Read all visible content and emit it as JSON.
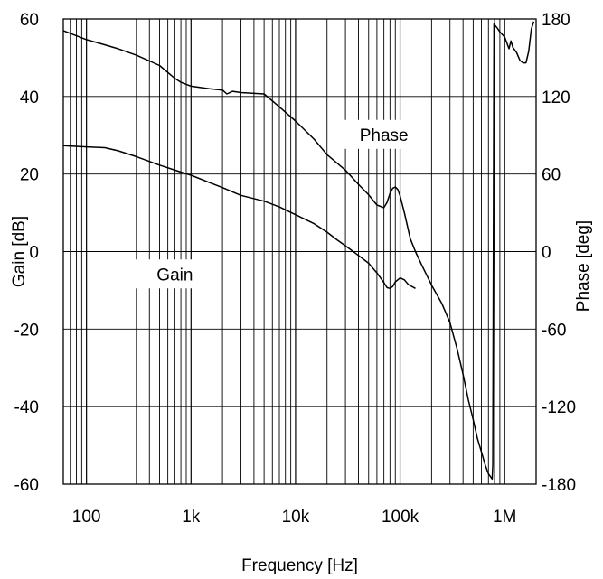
{
  "chart_data": {
    "type": "line",
    "xlabel": "Frequency [Hz]",
    "ylabel_left": "Gain [dB]",
    "ylabel_right": "Phase [deg]",
    "x_scale": "log",
    "xlim": [
      60,
      2000000
    ],
    "ylim_left": [
      -60,
      60
    ],
    "ylim_right": [
      -180,
      180
    ],
    "grid": true,
    "x_ticks": [
      {
        "value": 100,
        "label": "100"
      },
      {
        "value": 1000,
        "label": "1k"
      },
      {
        "value": 10000,
        "label": "10k"
      },
      {
        "value": 100000,
        "label": "100k"
      },
      {
        "value": 1000000,
        "label": "1M"
      }
    ],
    "y_left_ticks": [
      {
        "value": 60,
        "label": "60"
      },
      {
        "value": 40,
        "label": "40"
      },
      {
        "value": 20,
        "label": "20"
      },
      {
        "value": 0,
        "label": "0"
      },
      {
        "value": -20,
        "label": "-20"
      },
      {
        "value": -40,
        "label": "-40"
      },
      {
        "value": -60,
        "label": "-60"
      }
    ],
    "y_right_ticks": [
      {
        "value": 180,
        "label": "180"
      },
      {
        "value": 120,
        "label": "120"
      },
      {
        "value": 60,
        "label": "60"
      },
      {
        "value": 0,
        "label": "0"
      },
      {
        "value": -60,
        "label": "-60"
      },
      {
        "value": -120,
        "label": "-120"
      },
      {
        "value": -180,
        "label": "-180"
      }
    ],
    "series": [
      {
        "name": "Gain",
        "axis": "left",
        "label_at": {
          "x": 700,
          "y": -6
        },
        "points": [
          [
            60,
            27.3
          ],
          [
            100,
            27.0
          ],
          [
            150,
            26.8
          ],
          [
            200,
            26.0
          ],
          [
            300,
            24.5
          ],
          [
            500,
            22.3
          ],
          [
            800,
            20.5
          ],
          [
            1000,
            19.7
          ],
          [
            1500,
            17.8
          ],
          [
            2000,
            16.5
          ],
          [
            3000,
            14.5
          ],
          [
            5000,
            13.0
          ],
          [
            7000,
            11.5
          ],
          [
            10000,
            9.5
          ],
          [
            15000,
            7.2
          ],
          [
            20000,
            5.0
          ],
          [
            25000,
            3.0
          ],
          [
            30000,
            1.5
          ],
          [
            40000,
            -1.0
          ],
          [
            50000,
            -3.0
          ],
          [
            60000,
            -5.5
          ],
          [
            70000,
            -8.0
          ],
          [
            75000,
            -9.3
          ],
          [
            80000,
            -9.5
          ],
          [
            85000,
            -9.0
          ],
          [
            90000,
            -7.8
          ],
          [
            100000,
            -6.8
          ],
          [
            110000,
            -7.3
          ],
          [
            120000,
            -8.5
          ],
          [
            140000,
            -9.5
          ]
        ]
      },
      {
        "name": "Phase",
        "axis": "right",
        "label_at": {
          "x": 70000,
          "y": 90
        },
        "points": [
          [
            60,
            171
          ],
          [
            100,
            164
          ],
          [
            150,
            160
          ],
          [
            200,
            157
          ],
          [
            300,
            152
          ],
          [
            500,
            144
          ],
          [
            700,
            134
          ],
          [
            800,
            131
          ],
          [
            1000,
            128
          ],
          [
            1500,
            126
          ],
          [
            2000,
            125
          ],
          [
            2200,
            122
          ],
          [
            2500,
            124
          ],
          [
            3000,
            123
          ],
          [
            5000,
            122
          ],
          [
            7000,
            112
          ],
          [
            10000,
            101
          ],
          [
            15000,
            87
          ],
          [
            20000,
            75
          ],
          [
            30000,
            63
          ],
          [
            40000,
            52
          ],
          [
            50000,
            44
          ],
          [
            60000,
            36
          ],
          [
            70000,
            34
          ],
          [
            75000,
            38
          ],
          [
            80000,
            45
          ],
          [
            85000,
            49
          ],
          [
            90000,
            50
          ],
          [
            95000,
            48
          ],
          [
            100000,
            43
          ],
          [
            110000,
            30
          ],
          [
            125000,
            10
          ],
          [
            140000,
            0
          ],
          [
            160000,
            -10
          ],
          [
            200000,
            -26
          ],
          [
            250000,
            -40
          ],
          [
            300000,
            -55
          ],
          [
            350000,
            -75
          ],
          [
            400000,
            -95
          ],
          [
            450000,
            -115
          ],
          [
            500000,
            -130
          ],
          [
            550000,
            -145
          ],
          [
            600000,
            -155
          ],
          [
            650000,
            -165
          ],
          [
            700000,
            -172
          ],
          [
            760000,
            -176
          ],
          [
            770000,
            -165
          ],
          [
            790000,
            176
          ],
          [
            850000,
            173
          ],
          [
            900000,
            170
          ],
          [
            1000000,
            166
          ],
          [
            1100000,
            157
          ],
          [
            1150000,
            163
          ],
          [
            1200000,
            158
          ],
          [
            1300000,
            154
          ],
          [
            1400000,
            148
          ],
          [
            1500000,
            146
          ],
          [
            1600000,
            146
          ],
          [
            1700000,
            155
          ],
          [
            1800000,
            172
          ],
          [
            1900000,
            178
          ]
        ]
      }
    ]
  }
}
